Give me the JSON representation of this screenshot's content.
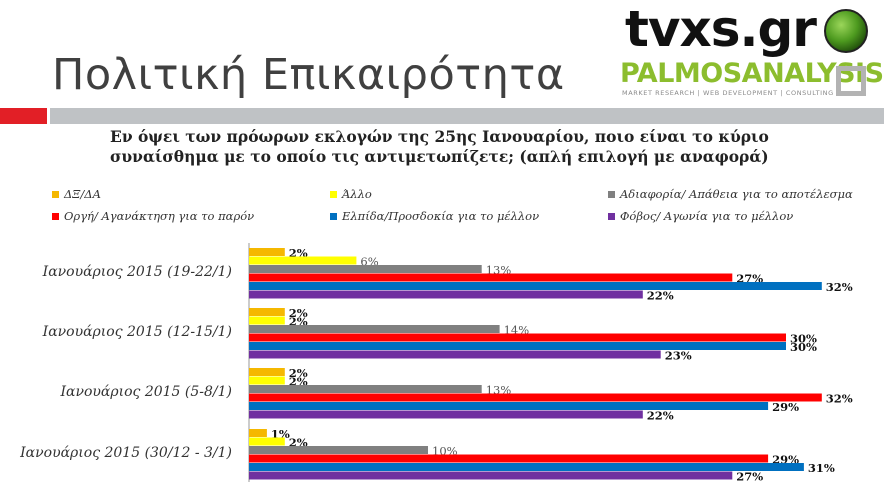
{
  "header": {
    "title": "Πολιτική Επικαιρότητα",
    "brand_main": "tvxs.gr",
    "brand_secondary": "PALMOSANALYSIS",
    "brand_tagline": "MARKET RESEARCH | WEB DEVELOPMENT | CONSULTING"
  },
  "colors": {
    "accent_red": "#e21f26",
    "divider_grey": "#bfc2c5"
  },
  "chart_data": {
    "type": "bar",
    "orientation": "horizontal",
    "title": "Εν όψει των πρόωρων εκλογών της 25ης Ιανουαρίου, ποιο είναι το κύριο συναίσθημα με το οποίο τις αντιμετωπίζετε; (απλή επιλογή με αναφορά)",
    "categories": [
      "Ιανουάριος 2015 (19-22/1)",
      "Ιανουάριος 2015 (12-15/1)",
      "Ιανουάριος 2015 (5-8/1)",
      "Ιανουάριος 2015 (30/12 - 3/1)"
    ],
    "series": [
      {
        "name": "ΔΞ/ΔΑ",
        "color": "#f5b800",
        "values": [
          2,
          2,
          2,
          1
        ]
      },
      {
        "name": "Άλλο",
        "color": "#ffff00",
        "values": [
          6,
          2,
          2,
          2
        ]
      },
      {
        "name": "Αδιαφορία/ Απάθεια για το αποτέλεσμα",
        "color": "#808080",
        "values": [
          13,
          14,
          13,
          10
        ]
      },
      {
        "name": "Οργή/ Αγανάκτηση για το παρόν",
        "color": "#ff0000",
        "values": [
          27,
          30,
          32,
          29
        ]
      },
      {
        "name": "Ελπίδα/Προσδοκία για το μέλλον",
        "color": "#0070c0",
        "values": [
          32,
          30,
          29,
          31
        ]
      },
      {
        "name": "Φόβος/ Αγωνία για το μέλλον",
        "color": "#7030a0",
        "values": [
          22,
          23,
          22,
          27
        ]
      }
    ],
    "value_suffix": "%",
    "xlim": [
      0,
      34
    ],
    "grid": false,
    "legend_position": "top"
  }
}
